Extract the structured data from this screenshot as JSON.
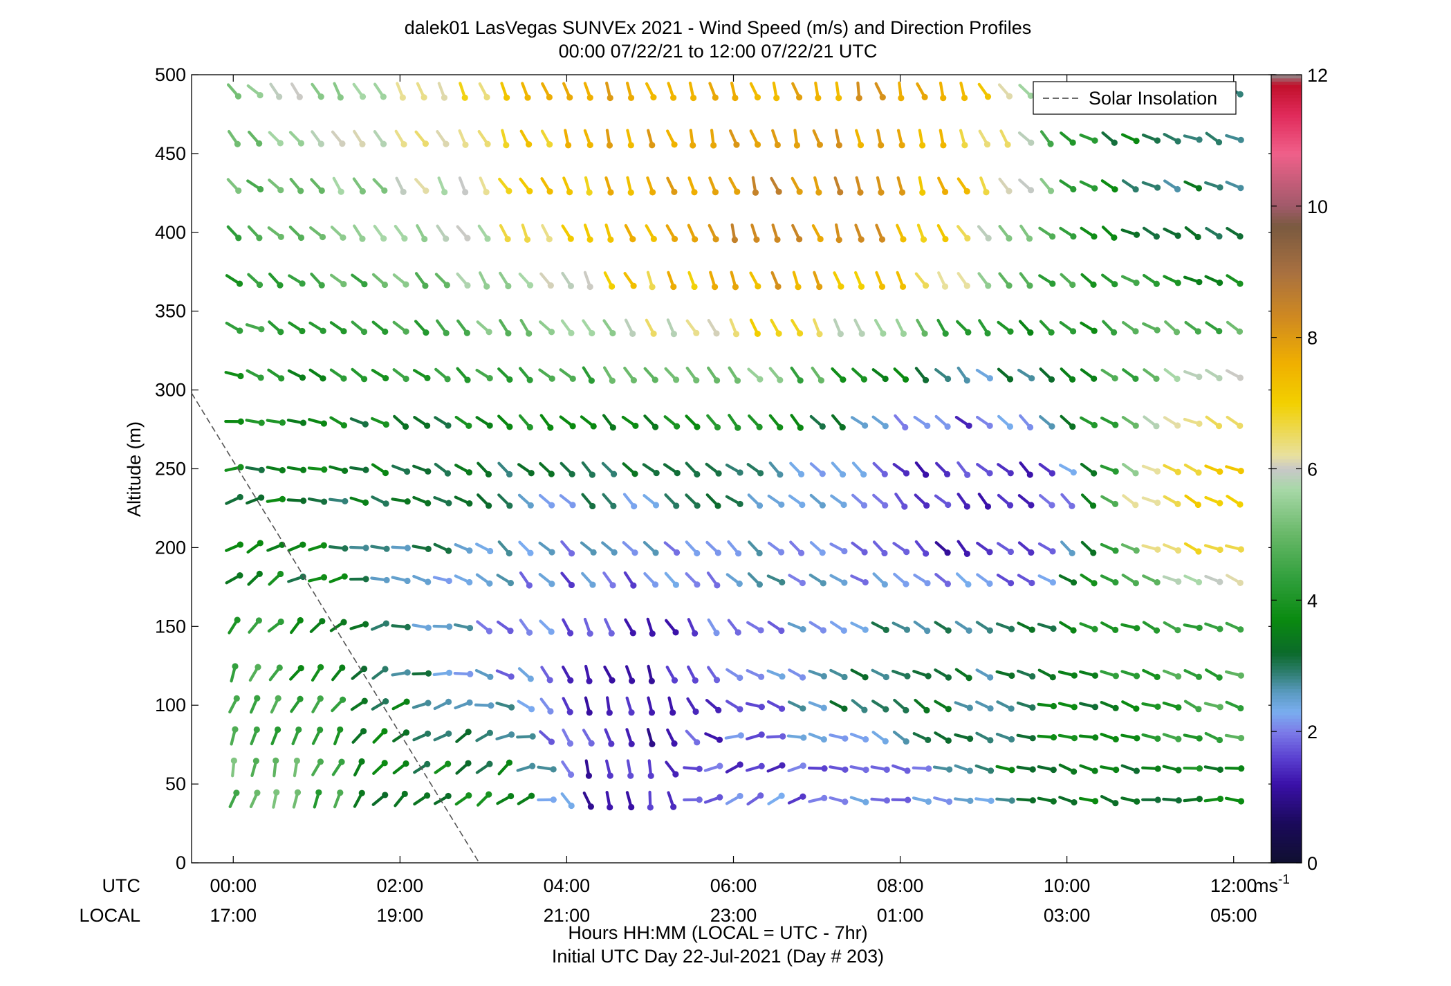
{
  "chart_data": {
    "type": "wind-profile",
    "title": "dalek01 LasVegas SUNVEx 2021 - Wind Speed (m/s) and Direction Profiles",
    "subtitle": "00:00 07/22/21 to 12:00 07/22/21  UTC",
    "ylabel": "Altitude (m)",
    "xlabel": "Hours HH:MM  (LOCAL = UTC - 7hr)",
    "footnote": "Initial UTC Day 22-Jul-2021 (Day # 203)",
    "row_label_utc": "UTC",
    "row_label_local": "LOCAL",
    "xlim_hours": [
      -0.5,
      12.5
    ],
    "ylim": [
      0,
      500
    ],
    "y_ticks": [
      0,
      50,
      100,
      150,
      200,
      250,
      300,
      350,
      400,
      450,
      500
    ],
    "y_tick_labels": [
      "0",
      "50",
      "100",
      "150",
      "200",
      "250",
      "300",
      "350",
      "400",
      "450",
      "500"
    ],
    "x_ticks_hours": [
      0,
      2,
      4,
      6,
      8,
      10,
      12
    ],
    "x_tick_labels_utc": [
      "00:00",
      "02:00",
      "04:00",
      "06:00",
      "08:00",
      "10:00",
      "12:00"
    ],
    "x_tick_labels_local": [
      "17:00",
      "19:00",
      "21:00",
      "23:00",
      "01:00",
      "03:00",
      "05:00"
    ],
    "time_start_hours": 0,
    "time_step_hours": 0.25,
    "time_count": 49,
    "altitudes_m": [
      40,
      60,
      80,
      100,
      120,
      150,
      180,
      200,
      230,
      250,
      280,
      310,
      340,
      370,
      400,
      430,
      460,
      490
    ],
    "speed_shading": "wind speed by color (m/s); direction shown by barb orientation",
    "samples": [
      {
        "time": "00:00",
        "alt": 40,
        "speed": 4.8,
        "dir_deg": 345
      },
      {
        "time": "03:00",
        "alt": 40,
        "speed": 3.5,
        "dir_deg": 310
      },
      {
        "time": "04:45",
        "alt": 40,
        "speed": 1.2,
        "dir_deg": 190
      },
      {
        "time": "06:00",
        "alt": 40,
        "speed": 1.8,
        "dir_deg": 300
      },
      {
        "time": "08:00",
        "alt": 40,
        "speed": 1.9,
        "dir_deg": 260
      },
      {
        "time": "10:00",
        "alt": 40,
        "speed": 3.5,
        "dir_deg": 255
      },
      {
        "time": "12:00",
        "alt": 40,
        "speed": 3.5,
        "dir_deg": 270
      },
      {
        "time": "04:45",
        "alt": 100,
        "speed": 1.4,
        "dir_deg": 200
      },
      {
        "time": "08:00",
        "alt": 100,
        "speed": 3.0,
        "dir_deg": 240
      },
      {
        "time": "12:00",
        "alt": 100,
        "speed": 4.6,
        "dir_deg": 250
      },
      {
        "time": "09:00",
        "alt": 230,
        "speed": 1.3,
        "dir_deg": 225
      },
      {
        "time": "11:45",
        "alt": 230,
        "speed": 6.8,
        "dir_deg": 245
      },
      {
        "time": "06:45",
        "alt": 430,
        "speed": 8.2,
        "dir_deg": 200
      },
      {
        "time": "06:45",
        "alt": 490,
        "speed": 7.8,
        "dir_deg": 195
      },
      {
        "time": "12:00",
        "alt": 460,
        "speed": 3.0,
        "dir_deg": 245
      }
    ],
    "legend": [
      {
        "label": "Solar Insolation",
        "style": "dashed",
        "color": "#555555"
      }
    ],
    "solar_insolation_line": {
      "x_hours": [
        -0.5,
        2.95
      ],
      "y_m": [
        298,
        0
      ]
    },
    "colorbar": {
      "range": [
        0,
        12
      ],
      "ticks": [
        0,
        2,
        4,
        6,
        8,
        10,
        12
      ],
      "tick_labels": [
        "0",
        "2",
        "4",
        "6",
        "8",
        "10",
        "12"
      ],
      "unit_label": "ms",
      "unit_exponent": "-1",
      "stops": [
        {
          "v": 0.0,
          "c": "#101030"
        },
        {
          "v": 0.6,
          "c": "#1a0a5a"
        },
        {
          "v": 1.2,
          "c": "#3a10a8"
        },
        {
          "v": 1.6,
          "c": "#5a40d0"
        },
        {
          "v": 2.0,
          "c": "#7c7ce8"
        },
        {
          "v": 2.3,
          "c": "#7aaef0"
        },
        {
          "v": 2.6,
          "c": "#5a9ac0"
        },
        {
          "v": 2.9,
          "c": "#2e7e70"
        },
        {
          "v": 3.2,
          "c": "#0b6a2a"
        },
        {
          "v": 3.7,
          "c": "#0a8a10"
        },
        {
          "v": 4.3,
          "c": "#2e9e3a"
        },
        {
          "v": 5.0,
          "c": "#68b868"
        },
        {
          "v": 5.7,
          "c": "#a8d8a8"
        },
        {
          "v": 6.0,
          "c": "#c8c8c8"
        },
        {
          "v": 6.2,
          "c": "#e8e0a0"
        },
        {
          "v": 7.0,
          "c": "#f2d000"
        },
        {
          "v": 7.6,
          "c": "#f0b000"
        },
        {
          "v": 8.3,
          "c": "#d08a20"
        },
        {
          "v": 9.0,
          "c": "#a87040"
        },
        {
          "v": 9.7,
          "c": "#7a5a40"
        },
        {
          "v": 10.0,
          "c": "#a05a6a"
        },
        {
          "v": 10.8,
          "c": "#f0608a"
        },
        {
          "v": 11.4,
          "c": "#e02a5a"
        },
        {
          "v": 11.85,
          "c": "#c0102a"
        },
        {
          "v": 12.0,
          "c": "#909090"
        }
      ]
    }
  }
}
